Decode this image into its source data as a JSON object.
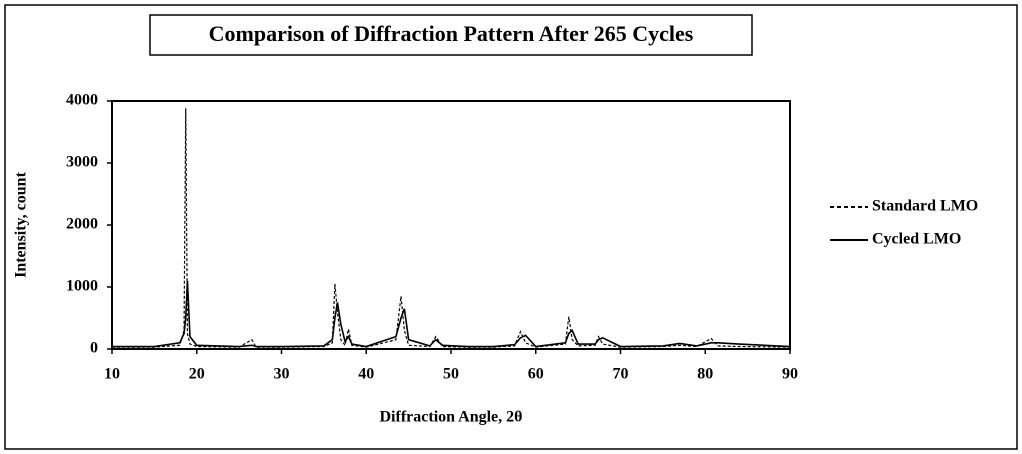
{
  "chart_data": {
    "type": "line",
    "title": "Comparison of Diffraction Pattern After 265 Cycles",
    "x_label": "Diffraction Angle, 2θ",
    "y_label": "Intensity, count",
    "x": [
      10,
      15,
      18,
      18.5,
      18.7,
      18.9,
      19.2,
      20,
      25,
      26.5,
      27,
      30,
      35,
      36,
      36.3,
      36.6,
      37,
      37.5,
      37.9,
      38.3,
      40,
      43.5,
      44.1,
      44.5,
      45,
      47.5,
      48.2,
      49,
      52,
      55,
      57.5,
      58.2,
      58.8,
      60,
      63.5,
      63.9,
      64.3,
      65,
      67,
      67.4,
      67.9,
      70,
      75,
      77,
      79,
      80.7,
      81.5,
      84,
      90
    ],
    "series": [
      {
        "name": "Standard LMO",
        "color": "#000000",
        "line_style": "dashed",
        "values": [
          30,
          30,
          60,
          300,
          3880,
          250,
          80,
          40,
          30,
          150,
          30,
          30,
          40,
          100,
          1050,
          600,
          150,
          60,
          320,
          60,
          30,
          150,
          850,
          300,
          60,
          40,
          200,
          40,
          30,
          30,
          50,
          280,
          100,
          30,
          80,
          520,
          150,
          50,
          60,
          200,
          80,
          30,
          40,
          60,
          40,
          170,
          50,
          40,
          30
        ]
      },
      {
        "name": "Cycled LMO",
        "color": "#000000",
        "line_style": "solid",
        "values": [
          40,
          40,
          100,
          250,
          500,
          1100,
          200,
          60,
          40,
          60,
          40,
          40,
          50,
          150,
          500,
          750,
          400,
          120,
          200,
          80,
          40,
          200,
          500,
          650,
          150,
          50,
          150,
          60,
          40,
          40,
          70,
          180,
          220,
          40,
          100,
          250,
          300,
          80,
          80,
          150,
          180,
          40,
          50,
          90,
          50,
          100,
          100,
          80,
          40
        ]
      }
    ],
    "xlim": [
      10,
      90
    ],
    "xticks": [
      10,
      20,
      30,
      40,
      50,
      60,
      70,
      80,
      90
    ],
    "ylim": [
      0,
      4000
    ],
    "yticks": [
      0,
      1000,
      2000,
      3000,
      4000
    ],
    "legend": "right"
  }
}
